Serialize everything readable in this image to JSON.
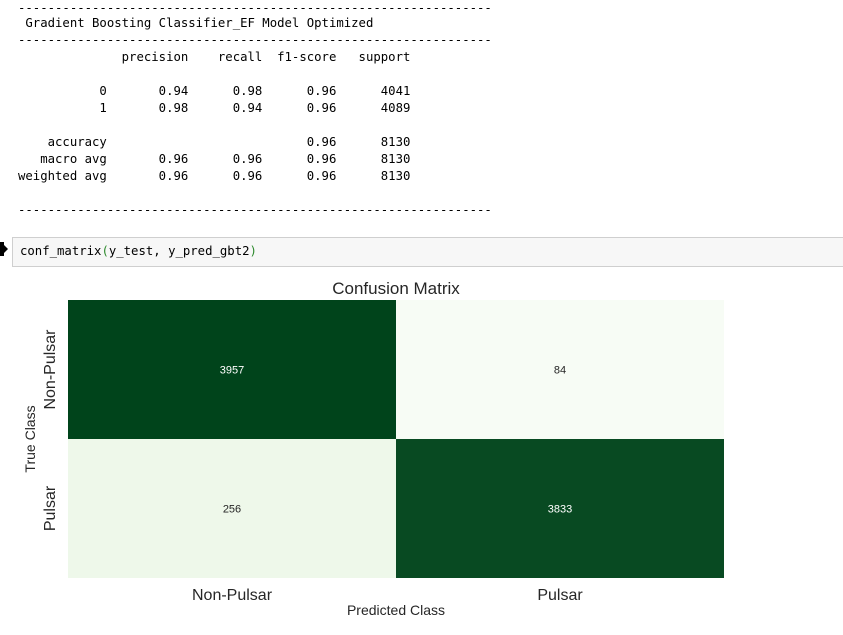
{
  "report": {
    "rule": "----------------------------------------------------------------",
    "title": " Gradient Boosting Classifier_EF Model Optimized",
    "header": "              precision    recall  f1-score   support",
    "rows": [
      "",
      "           0       0.94      0.98      0.96      4041",
      "           1       0.98      0.94      0.96      4089",
      "",
      "    accuracy                           0.96      8130",
      "   macro avg       0.96      0.96      0.96      8130",
      "weighted avg       0.96      0.96      0.96      8130",
      ""
    ]
  },
  "cell": {
    "fn": "conf_matrix",
    "open": "(",
    "args": "y_test, y_pred_gbt2",
    "close": ")"
  },
  "chart_data": {
    "type": "heatmap",
    "title": "Confusion Matrix",
    "xlabel": "Predicted Class",
    "ylabel": "True Class",
    "x_categories": [
      "Non-Pulsar",
      "Pulsar"
    ],
    "y_categories": [
      "Non-Pulsar",
      "Pulsar"
    ],
    "values": [
      [
        3957,
        84
      ],
      [
        256,
        3833
      ]
    ],
    "colormap": "Greens",
    "colors": {
      "high": "#00441b",
      "low_1": "#f7fcf5",
      "low_2": "#eef8ea",
      "text_dark": "#262626",
      "text_light": "#ffffff"
    }
  }
}
